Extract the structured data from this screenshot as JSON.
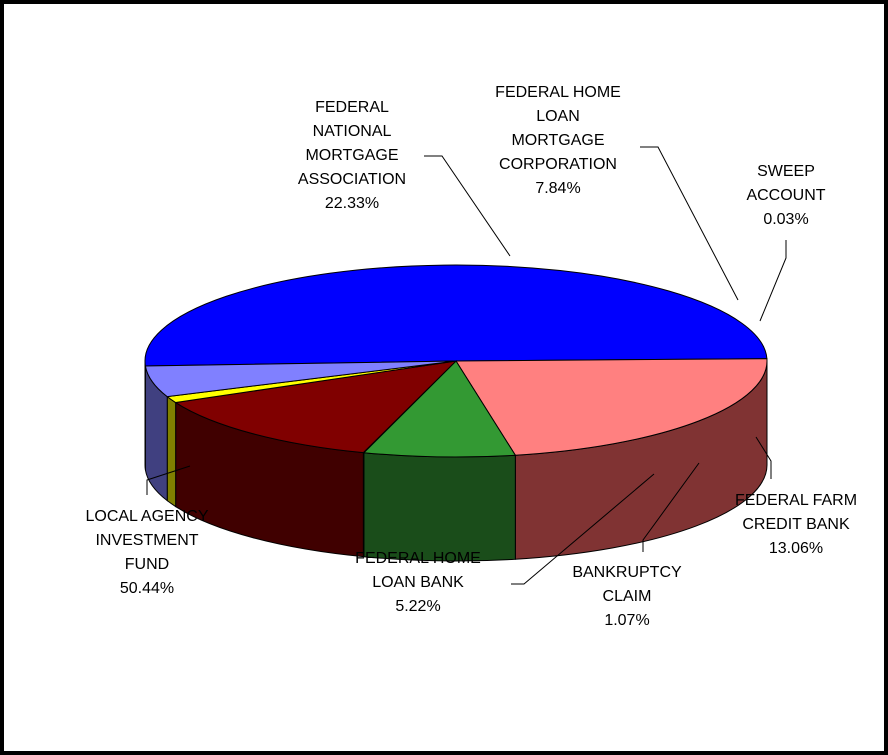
{
  "chart_data": {
    "type": "pie",
    "title": "",
    "slices": [
      {
        "label": [
          "LOCAL AGENCY",
          "INVESTMENT",
          "FUND"
        ],
        "pct": "50.44%",
        "value": 50.44,
        "top_color": "#0000FF",
        "side_color": "#000080"
      },
      {
        "label": [
          "FEDERAL",
          "NATIONAL",
          "MORTGAGE",
          "ASSOCIATION"
        ],
        "pct": "22.33%",
        "value": 22.33,
        "top_color": "#FF8080",
        "side_color": "#803333"
      },
      {
        "label": [
          "FEDERAL HOME",
          "LOAN",
          "MORTGAGE",
          "CORPORATION"
        ],
        "pct": "7.84%",
        "value": 7.84,
        "top_color": "#339933",
        "side_color": "#1A4D1A"
      },
      {
        "label": [
          "SWEEP",
          "ACCOUNT"
        ],
        "pct": "0.03%",
        "value": 0.03,
        "top_color": "#FFFFFF",
        "side_color": "#999999"
      },
      {
        "label": [
          "FEDERAL FARM",
          "CREDIT BANK"
        ],
        "pct": "13.06%",
        "value": 13.06,
        "top_color": "#800000",
        "side_color": "#400000"
      },
      {
        "label": [
          "BANKRUPTCY",
          "CLAIM"
        ],
        "pct": "1.07%",
        "value": 1.07,
        "top_color": "#FFFF00",
        "side_color": "#808000"
      },
      {
        "label": [
          "FEDERAL HOME",
          "LOAN BANK"
        ],
        "pct": "5.22%",
        "value": 5.22,
        "top_color": "#8080FF",
        "side_color": "#404080"
      }
    ]
  }
}
